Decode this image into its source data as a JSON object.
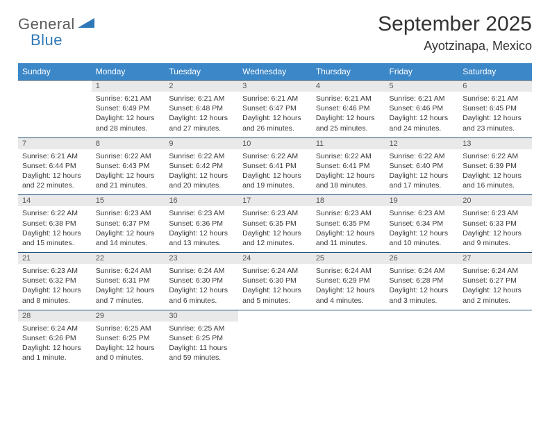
{
  "logo": {
    "part1": "General",
    "part2": "Blue"
  },
  "title": "September 2025",
  "location": "Ayotzinapa, Mexico",
  "colors": {
    "header_bg": "#3b87c8",
    "header_text": "#ffffff",
    "daynum_bg": "#e9e9e9",
    "week_border": "#1f4e79",
    "logo_blue": "#2f78b7",
    "body_text": "#3a3a3a"
  },
  "weekdays": [
    "Sunday",
    "Monday",
    "Tuesday",
    "Wednesday",
    "Thursday",
    "Friday",
    "Saturday"
  ],
  "weeks": [
    {
      "nums": [
        "",
        "1",
        "2",
        "3",
        "4",
        "5",
        "6"
      ],
      "cells": [
        {
          "empty": true
        },
        {
          "sunrise": "Sunrise: 6:21 AM",
          "sunset": "Sunset: 6:49 PM",
          "dl1": "Daylight: 12 hours",
          "dl2": "and 28 minutes."
        },
        {
          "sunrise": "Sunrise: 6:21 AM",
          "sunset": "Sunset: 6:48 PM",
          "dl1": "Daylight: 12 hours",
          "dl2": "and 27 minutes."
        },
        {
          "sunrise": "Sunrise: 6:21 AM",
          "sunset": "Sunset: 6:47 PM",
          "dl1": "Daylight: 12 hours",
          "dl2": "and 26 minutes."
        },
        {
          "sunrise": "Sunrise: 6:21 AM",
          "sunset": "Sunset: 6:46 PM",
          "dl1": "Daylight: 12 hours",
          "dl2": "and 25 minutes."
        },
        {
          "sunrise": "Sunrise: 6:21 AM",
          "sunset": "Sunset: 6:46 PM",
          "dl1": "Daylight: 12 hours",
          "dl2": "and 24 minutes."
        },
        {
          "sunrise": "Sunrise: 6:21 AM",
          "sunset": "Sunset: 6:45 PM",
          "dl1": "Daylight: 12 hours",
          "dl2": "and 23 minutes."
        }
      ]
    },
    {
      "nums": [
        "7",
        "8",
        "9",
        "10",
        "11",
        "12",
        "13"
      ],
      "cells": [
        {
          "sunrise": "Sunrise: 6:21 AM",
          "sunset": "Sunset: 6:44 PM",
          "dl1": "Daylight: 12 hours",
          "dl2": "and 22 minutes."
        },
        {
          "sunrise": "Sunrise: 6:22 AM",
          "sunset": "Sunset: 6:43 PM",
          "dl1": "Daylight: 12 hours",
          "dl2": "and 21 minutes."
        },
        {
          "sunrise": "Sunrise: 6:22 AM",
          "sunset": "Sunset: 6:42 PM",
          "dl1": "Daylight: 12 hours",
          "dl2": "and 20 minutes."
        },
        {
          "sunrise": "Sunrise: 6:22 AM",
          "sunset": "Sunset: 6:41 PM",
          "dl1": "Daylight: 12 hours",
          "dl2": "and 19 minutes."
        },
        {
          "sunrise": "Sunrise: 6:22 AM",
          "sunset": "Sunset: 6:41 PM",
          "dl1": "Daylight: 12 hours",
          "dl2": "and 18 minutes."
        },
        {
          "sunrise": "Sunrise: 6:22 AM",
          "sunset": "Sunset: 6:40 PM",
          "dl1": "Daylight: 12 hours",
          "dl2": "and 17 minutes."
        },
        {
          "sunrise": "Sunrise: 6:22 AM",
          "sunset": "Sunset: 6:39 PM",
          "dl1": "Daylight: 12 hours",
          "dl2": "and 16 minutes."
        }
      ]
    },
    {
      "nums": [
        "14",
        "15",
        "16",
        "17",
        "18",
        "19",
        "20"
      ],
      "cells": [
        {
          "sunrise": "Sunrise: 6:22 AM",
          "sunset": "Sunset: 6:38 PM",
          "dl1": "Daylight: 12 hours",
          "dl2": "and 15 minutes."
        },
        {
          "sunrise": "Sunrise: 6:23 AM",
          "sunset": "Sunset: 6:37 PM",
          "dl1": "Daylight: 12 hours",
          "dl2": "and 14 minutes."
        },
        {
          "sunrise": "Sunrise: 6:23 AM",
          "sunset": "Sunset: 6:36 PM",
          "dl1": "Daylight: 12 hours",
          "dl2": "and 13 minutes."
        },
        {
          "sunrise": "Sunrise: 6:23 AM",
          "sunset": "Sunset: 6:35 PM",
          "dl1": "Daylight: 12 hours",
          "dl2": "and 12 minutes."
        },
        {
          "sunrise": "Sunrise: 6:23 AM",
          "sunset": "Sunset: 6:35 PM",
          "dl1": "Daylight: 12 hours",
          "dl2": "and 11 minutes."
        },
        {
          "sunrise": "Sunrise: 6:23 AM",
          "sunset": "Sunset: 6:34 PM",
          "dl1": "Daylight: 12 hours",
          "dl2": "and 10 minutes."
        },
        {
          "sunrise": "Sunrise: 6:23 AM",
          "sunset": "Sunset: 6:33 PM",
          "dl1": "Daylight: 12 hours",
          "dl2": "and 9 minutes."
        }
      ]
    },
    {
      "nums": [
        "21",
        "22",
        "23",
        "24",
        "25",
        "26",
        "27"
      ],
      "cells": [
        {
          "sunrise": "Sunrise: 6:23 AM",
          "sunset": "Sunset: 6:32 PM",
          "dl1": "Daylight: 12 hours",
          "dl2": "and 8 minutes."
        },
        {
          "sunrise": "Sunrise: 6:24 AM",
          "sunset": "Sunset: 6:31 PM",
          "dl1": "Daylight: 12 hours",
          "dl2": "and 7 minutes."
        },
        {
          "sunrise": "Sunrise: 6:24 AM",
          "sunset": "Sunset: 6:30 PM",
          "dl1": "Daylight: 12 hours",
          "dl2": "and 6 minutes."
        },
        {
          "sunrise": "Sunrise: 6:24 AM",
          "sunset": "Sunset: 6:30 PM",
          "dl1": "Daylight: 12 hours",
          "dl2": "and 5 minutes."
        },
        {
          "sunrise": "Sunrise: 6:24 AM",
          "sunset": "Sunset: 6:29 PM",
          "dl1": "Daylight: 12 hours",
          "dl2": "and 4 minutes."
        },
        {
          "sunrise": "Sunrise: 6:24 AM",
          "sunset": "Sunset: 6:28 PM",
          "dl1": "Daylight: 12 hours",
          "dl2": "and 3 minutes."
        },
        {
          "sunrise": "Sunrise: 6:24 AM",
          "sunset": "Sunset: 6:27 PM",
          "dl1": "Daylight: 12 hours",
          "dl2": "and 2 minutes."
        }
      ]
    },
    {
      "nums": [
        "28",
        "29",
        "30",
        "",
        "",
        "",
        ""
      ],
      "cells": [
        {
          "sunrise": "Sunrise: 6:24 AM",
          "sunset": "Sunset: 6:26 PM",
          "dl1": "Daylight: 12 hours",
          "dl2": "and 1 minute."
        },
        {
          "sunrise": "Sunrise: 6:25 AM",
          "sunset": "Sunset: 6:25 PM",
          "dl1": "Daylight: 12 hours",
          "dl2": "and 0 minutes."
        },
        {
          "sunrise": "Sunrise: 6:25 AM",
          "sunset": "Sunset: 6:25 PM",
          "dl1": "Daylight: 11 hours",
          "dl2": "and 59 minutes."
        },
        {
          "empty": true
        },
        {
          "empty": true
        },
        {
          "empty": true
        },
        {
          "empty": true
        }
      ]
    }
  ]
}
